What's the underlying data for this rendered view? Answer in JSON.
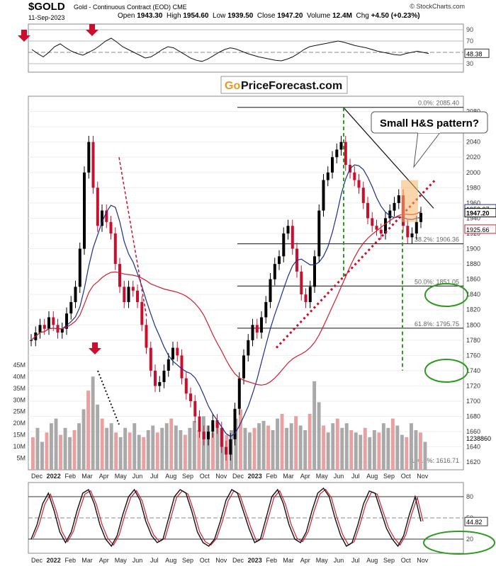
{
  "header": {
    "symbol": "$GOLD",
    "description": "Gold - Continuous Contract (EOD)",
    "exchange": "CME",
    "credit": "© StockCharts.com",
    "date": "11-Sep-2023",
    "open_label": "Open",
    "open": "1943.30",
    "high_label": "High",
    "high": "1954.60",
    "low_label": "Low",
    "low": "1939.50",
    "close_label": "Close",
    "close": "1947.20",
    "volume_label": "Volume",
    "volume": "12.4M",
    "chg_label": "Chg",
    "chg": "+4.50 (+0.23%)"
  },
  "watermark": {
    "prefix": "Go",
    "text": "PriceForecast.com"
  },
  "annotation": "Small H&S pattern?",
  "colors": {
    "up_candle": "#000000",
    "down_candle": "#c8102e",
    "sma50": "#1c2e8c",
    "sma200": "#d31d32",
    "trend_dashed": "#c8102e",
    "green": "#2e9a1f",
    "highlight": "#f5b56a",
    "volume_up": "#a9a9a9",
    "volume_down": "#e8a0a0"
  },
  "chart_data": [
    {
      "type": "line",
      "name": "RSI panel",
      "y_ticks": [
        30,
        50,
        70,
        90
      ],
      "ylim": [
        15,
        100
      ],
      "last_value_label": "48.38",
      "values": [
        55,
        48,
        42,
        50,
        60,
        65,
        58,
        52,
        48,
        45,
        50,
        55,
        62,
        70,
        75,
        68,
        60,
        55,
        50,
        45,
        40,
        42,
        48,
        55,
        60,
        58,
        52,
        46,
        40,
        36,
        34,
        38,
        44,
        50,
        55,
        58,
        56,
        52,
        48,
        45,
        42,
        40,
        38,
        36,
        35,
        38,
        42,
        48,
        55,
        60,
        62,
        64,
        66,
        68,
        70,
        68,
        65,
        62,
        60,
        58,
        55,
        52,
        50,
        48,
        46,
        45,
        48,
        50,
        52,
        50,
        48
      ]
    },
    {
      "type": "line",
      "name": "Price panel (daily candles)",
      "y_ticks": [
        1620,
        1640,
        1660,
        1680,
        1700,
        1720,
        1740,
        1760,
        1780,
        1800,
        1820,
        1840,
        1860,
        1880,
        1900,
        1920,
        1940,
        1960,
        1980,
        2000,
        2020,
        2040,
        2060,
        2080
      ],
      "ylim": [
        1610,
        2100
      ],
      "x_labels": [
        "Dec",
        "2022",
        "Feb",
        "Mar",
        "Apr",
        "May",
        "Jun",
        "Jul",
        "Aug",
        "Sep",
        "Oct",
        "Nov",
        "Dec",
        "2023",
        "Feb",
        "Mar",
        "Apr",
        "May",
        "Jun",
        "Jul",
        "Aug",
        "Sep",
        "Oct",
        "Nov"
      ],
      "price_labels": [
        "1952.37",
        "1947.20",
        "1925.66",
        "1238860"
      ],
      "fib_levels": [
        {
          "label": "0.0%: 2085.40",
          "value": 2085.4
        },
        {
          "label": "38.2%: 1906.36",
          "value": 1906.36
        },
        {
          "label": "50.0%: 1851.05",
          "value": 1851.05
        },
        {
          "label": "61.8%: 1795.75",
          "value": 1795.75
        },
        {
          "label": "100.0%: 1616.71",
          "value": 1616.71
        }
      ],
      "closes": [
        1780,
        1790,
        1800,
        1795,
        1810,
        1800,
        1790,
        1795,
        1815,
        1830,
        1850,
        1900,
        2000,
        2040,
        1980,
        1930,
        1950,
        1935,
        1920,
        1880,
        1850,
        1830,
        1850,
        1845,
        1830,
        1800,
        1770,
        1740,
        1720,
        1725,
        1740,
        1755,
        1770,
        1760,
        1730,
        1710,
        1700,
        1680,
        1660,
        1650,
        1660,
        1675,
        1665,
        1640,
        1630,
        1650,
        1690,
        1730,
        1760,
        1780,
        1800,
        1790,
        1810,
        1830,
        1860,
        1880,
        1890,
        1920,
        1930,
        1900,
        1870,
        1840,
        1830,
        1850,
        1890,
        1950,
        1990,
        2000,
        2020,
        2030,
        2040,
        2010,
        2000,
        1990,
        1980,
        1960,
        1940,
        1930,
        1925,
        1920,
        1940,
        1950,
        1960,
        1970,
        1930,
        1915,
        1920,
        1935,
        1947
      ]
    },
    {
      "type": "bar",
      "name": "Volume",
      "y_ticks": [
        "5M",
        "10M",
        "15M",
        "20M",
        "25M",
        "30M",
        "35M",
        "40M",
        "45M"
      ],
      "ylim": [
        0,
        48
      ],
      "values": [
        14,
        18,
        12,
        16,
        20,
        22,
        15,
        18,
        14,
        17,
        20,
        26,
        34,
        40,
        28,
        22,
        18,
        20,
        16,
        14,
        18,
        16,
        20,
        15,
        14,
        17,
        19,
        16,
        18,
        20,
        22,
        19,
        17,
        15,
        18,
        21,
        17,
        23,
        19,
        16,
        20,
        18,
        15,
        17,
        22,
        26,
        18,
        16,
        18,
        20,
        21,
        19,
        17,
        22,
        24,
        18,
        20,
        23,
        19,
        17,
        24,
        38,
        29,
        19,
        16,
        20,
        22,
        18,
        20,
        17,
        16,
        15,
        18,
        14,
        17,
        16,
        20,
        18,
        22,
        19,
        15,
        14,
        20,
        17,
        16,
        12
      ]
    },
    {
      "type": "line",
      "name": "Stochastic panel",
      "y_ticks": [
        20,
        50,
        80
      ],
      "ylim": [
        0,
        100
      ],
      "last_value_label": "44.82",
      "values": [
        20,
        40,
        70,
        85,
        60,
        30,
        15,
        30,
        60,
        85,
        90,
        70,
        40,
        20,
        10,
        25,
        55,
        80,
        90,
        75,
        45,
        25,
        15,
        20,
        50,
        80,
        90,
        85,
        60,
        30,
        15,
        10,
        20,
        45,
        75,
        90,
        85,
        60,
        35,
        15,
        20,
        50,
        80,
        90,
        70,
        40,
        20,
        15,
        30,
        60,
        85,
        92,
        80,
        50,
        25,
        10,
        15,
        40,
        70,
        88,
        85,
        60,
        35,
        20,
        10,
        25,
        55,
        80,
        45
      ]
    }
  ],
  "x_axis_labels": [
    "Dec",
    "2022",
    "Feb",
    "Mar",
    "Apr",
    "May",
    "Jun",
    "Jul",
    "Aug",
    "Sep",
    "Oct",
    "Nov",
    "Dec",
    "2023",
    "Feb",
    "Mar",
    "Apr",
    "May",
    "Jun",
    "Jul",
    "Aug",
    "Sep",
    "Oct",
    "Nov"
  ]
}
